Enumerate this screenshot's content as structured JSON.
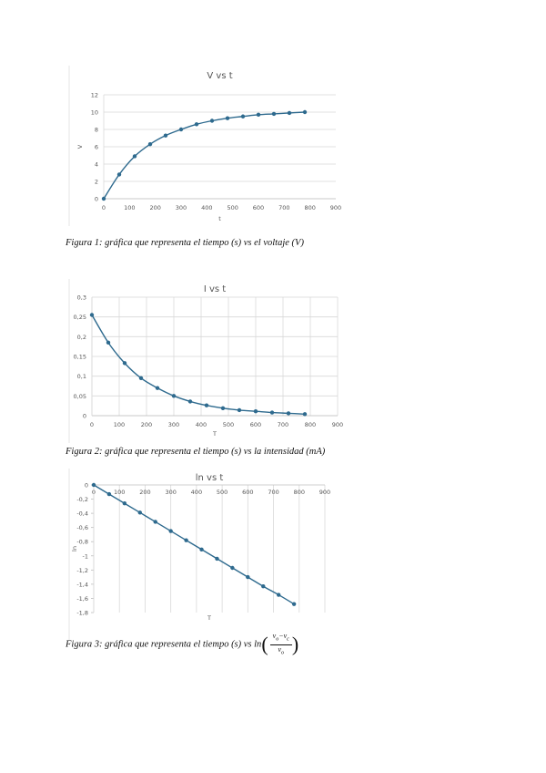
{
  "chart_data": [
    {
      "type": "line",
      "title": "V vs t",
      "xlabel": "t",
      "ylabel": "V",
      "xlim": [
        0,
        900
      ],
      "ylim": [
        0,
        12
      ],
      "xticks": [
        "0",
        "100",
        "200",
        "300",
        "400",
        "500",
        "600",
        "700",
        "800",
        "900"
      ],
      "yticks": [
        "0",
        "2",
        "4",
        "6",
        "8",
        "10",
        "12"
      ],
      "grid": "horizontal",
      "x": [
        0,
        60,
        120,
        180,
        240,
        300,
        360,
        420,
        480,
        540,
        600,
        660,
        720,
        780
      ],
      "y": [
        0,
        2.8,
        4.9,
        6.3,
        7.3,
        8.0,
        8.6,
        9.0,
        9.3,
        9.5,
        9.7,
        9.8,
        9.9,
        10.0
      ],
      "color": "#2e6a8e"
    },
    {
      "type": "line",
      "title": "I vs t",
      "xlabel": "T",
      "ylabel": "",
      "xlim": [
        0,
        900
      ],
      "ylim": [
        0,
        0.3
      ],
      "xticks": [
        "0",
        "100",
        "200",
        "300",
        "400",
        "500",
        "600",
        "700",
        "800",
        "900"
      ],
      "yticks": [
        "0",
        "0,05",
        "0,1",
        "0,15",
        "0,2",
        "0,25",
        "0,3"
      ],
      "grid": "both",
      "x": [
        0,
        60,
        120,
        180,
        240,
        300,
        360,
        420,
        480,
        540,
        600,
        660,
        720,
        780
      ],
      "y": [
        0.255,
        0.185,
        0.133,
        0.095,
        0.07,
        0.05,
        0.036,
        0.026,
        0.019,
        0.014,
        0.011,
        0.008,
        0.006,
        0.004
      ],
      "color": "#2e6a8e"
    },
    {
      "type": "line",
      "title": "ln vs t",
      "xlabel": "T",
      "ylabel": "ln",
      "xlim": [
        0,
        900
      ],
      "ylim": [
        -1.8,
        0
      ],
      "xticks": [
        "0",
        "100",
        "200",
        "300",
        "400",
        "500",
        "600",
        "700",
        "800",
        "900"
      ],
      "yticks": [
        "0",
        "-0,2",
        "-0,4",
        "-0,6",
        "-0,8",
        "-1",
        "-1,2",
        "-1,4",
        "-1,6",
        "-1,8"
      ],
      "xaxis_position": "top",
      "grid": "vertical",
      "x": [
        0,
        60,
        120,
        180,
        240,
        300,
        360,
        420,
        480,
        540,
        600,
        660,
        720,
        780
      ],
      "y": [
        0,
        -0.13,
        -0.26,
        -0.39,
        -0.52,
        -0.65,
        -0.78,
        -0.91,
        -1.04,
        -1.17,
        -1.3,
        -1.43,
        -1.55,
        -1.68
      ],
      "color": "#2e6a8e"
    }
  ],
  "captions": {
    "fig1": "Figura 1: gráfica que representa el tiempo (s) vs el voltaje (V)",
    "fig2": "Figura 2: gráfica que representa el tiempo (s) vs la intensidad (mA)",
    "fig3_prefix": "Figura 3: gráfica que representa el tiempo (s) vs ln",
    "fig3_num": "v",
    "fig3_num_sub1": "o",
    "fig3_num_mid": "−v",
    "fig3_num_sub2": "c",
    "fig3_den": "v",
    "fig3_den_sub": "o"
  }
}
